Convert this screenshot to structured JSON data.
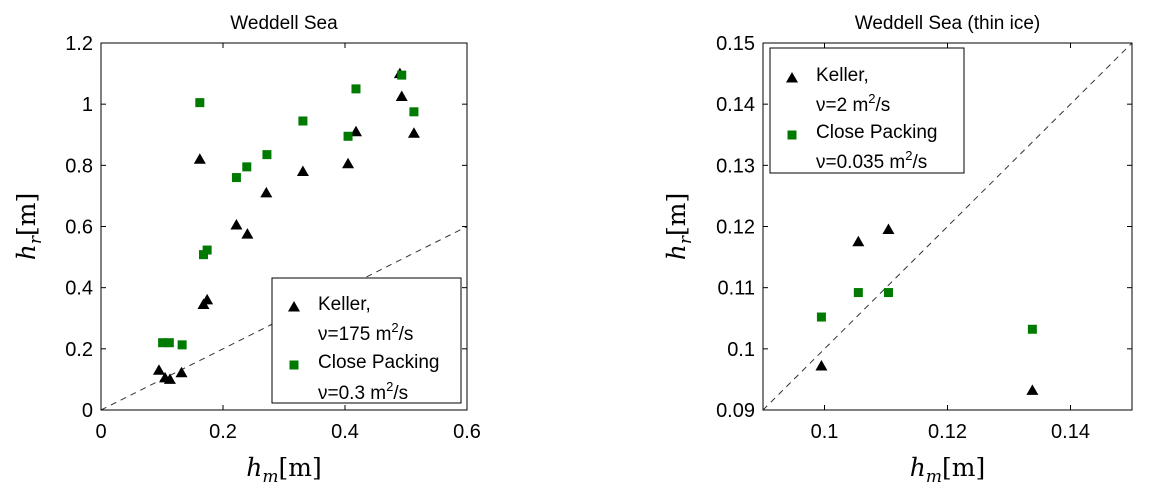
{
  "chart_data": [
    {
      "type": "scatter",
      "title": "Weddell Sea",
      "xlabel": "h_m [m]",
      "ylabel": "h_r [m]",
      "xlim": [
        0,
        0.6
      ],
      "ylim": [
        0,
        1.2
      ],
      "xticks": [
        "0",
        "0.2",
        "0.4",
        "0.6"
      ],
      "yticks": [
        "0",
        "0.2",
        "0.4",
        "0.6",
        "0.8",
        "1",
        "1.2"
      ],
      "reference_line": "y = x (dashed)",
      "legend_placement": "bottom-right",
      "series": [
        {
          "legend": [
            "Keller,",
            "ν=175 m",
            "2",
            "/s"
          ],
          "marker": "triangle",
          "color": "#000000",
          "points": [
            {
              "x": 0.095,
              "y": 0.13
            },
            {
              "x": 0.105,
              "y": 0.105
            },
            {
              "x": 0.113,
              "y": 0.1
            },
            {
              "x": 0.132,
              "y": 0.122
            },
            {
              "x": 0.162,
              "y": 0.82
            },
            {
              "x": 0.168,
              "y": 0.345
            },
            {
              "x": 0.174,
              "y": 0.36
            },
            {
              "x": 0.222,
              "y": 0.605
            },
            {
              "x": 0.24,
              "y": 0.575
            },
            {
              "x": 0.271,
              "y": 0.71
            },
            {
              "x": 0.331,
              "y": 0.78
            },
            {
              "x": 0.405,
              "y": 0.805
            },
            {
              "x": 0.418,
              "y": 0.91
            },
            {
              "x": 0.49,
              "y": 1.1
            },
            {
              "x": 0.493,
              "y": 1.025
            },
            {
              "x": 0.513,
              "y": 0.905
            }
          ]
        },
        {
          "legend": [
            "Close Packing",
            "ν=0.3 m",
            "2",
            "/s"
          ],
          "marker": "square",
          "color": "#007a00",
          "points": [
            {
              "x": 0.101,
              "y": 0.22
            },
            {
              "x": 0.112,
              "y": 0.22
            },
            {
              "x": 0.133,
              "y": 0.213
            },
            {
              "x": 0.162,
              "y": 1.005
            },
            {
              "x": 0.168,
              "y": 0.508
            },
            {
              "x": 0.174,
              "y": 0.523
            },
            {
              "x": 0.222,
              "y": 0.76
            },
            {
              "x": 0.239,
              "y": 0.795
            },
            {
              "x": 0.272,
              "y": 0.835
            },
            {
              "x": 0.331,
              "y": 0.945
            },
            {
              "x": 0.405,
              "y": 0.895
            },
            {
              "x": 0.418,
              "y": 1.05
            },
            {
              "x": 0.493,
              "y": 1.095
            },
            {
              "x": 0.513,
              "y": 0.975
            }
          ]
        }
      ]
    },
    {
      "type": "scatter",
      "title": "Weddell Sea (thin ice)",
      "xlabel": "h_m [m]",
      "ylabel": "h_r [m]",
      "xlim": [
        0.09,
        0.15
      ],
      "ylim": [
        0.09,
        0.15
      ],
      "xticks": [
        "0.1",
        "0.12",
        "0.14"
      ],
      "yticks": [
        "0.09",
        "0.1",
        "0.11",
        "0.12",
        "0.13",
        "0.14",
        "0.15"
      ],
      "reference_line": "y = x (dashed)",
      "legend_placement": "top-left",
      "series": [
        {
          "legend": [
            "Keller,",
            "ν=2 m",
            "2",
            "/s"
          ],
          "marker": "triangle",
          "color": "#000000",
          "points": [
            {
              "x": 0.0995,
              "y": 0.0972
            },
            {
              "x": 0.1055,
              "y": 0.1175
            },
            {
              "x": 0.1104,
              "y": 0.1195
            },
            {
              "x": 0.1338,
              "y": 0.0932
            }
          ]
        },
        {
          "legend": [
            "Close Packing",
            "ν=0.035 m",
            "2",
            "/s"
          ],
          "marker": "square",
          "color": "#007a00",
          "points": [
            {
              "x": 0.0995,
              "y": 0.1052
            },
            {
              "x": 0.1055,
              "y": 0.1092
            },
            {
              "x": 0.1104,
              "y": 0.1092
            },
            {
              "x": 0.1338,
              "y": 0.1032
            }
          ]
        }
      ]
    }
  ]
}
